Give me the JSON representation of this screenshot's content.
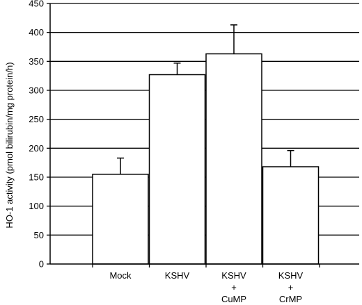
{
  "chart_data": {
    "type": "bar",
    "title": "",
    "xlabel": "",
    "ylabel": "HO-1 activity (pmol bilirubin/mg protein/h)",
    "ylim": [
      0,
      450
    ],
    "yticks": [
      0,
      50,
      100,
      150,
      200,
      250,
      300,
      350,
      400,
      450
    ],
    "grid": true,
    "legend": "none",
    "categories": [
      [
        "Mock"
      ],
      [
        "KSHV"
      ],
      [
        "KSHV",
        "+",
        "CuMP"
      ],
      [
        "KSHV",
        "+",
        "CrMP"
      ]
    ],
    "values": [
      155,
      327,
      363,
      168
    ],
    "errors": [
      28,
      20,
      50,
      28
    ],
    "colors": {
      "bar_fill": "#ffffff",
      "bar_stroke": "#000000",
      "grid": "#000000",
      "axis": "#000000"
    }
  }
}
